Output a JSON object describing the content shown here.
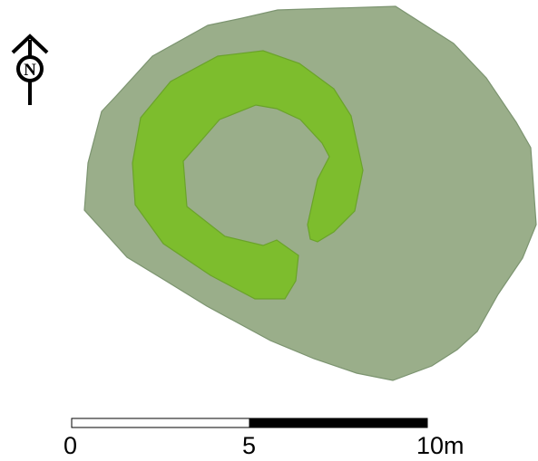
{
  "map": {
    "colors": {
      "mound_fill": "#9aae8a",
      "mound_stroke": "#7c9470",
      "bank_fill": "#7dbd2d",
      "bank_stroke": "#6aa32a"
    },
    "north_arrow": {
      "icon": "north-arrow-icon",
      "letter": "N"
    },
    "scale_bar": {
      "labels": [
        "0",
        "5",
        "10m"
      ],
      "segments": [
        {
          "from": 0,
          "to": 5,
          "fill": "#ffffff"
        },
        {
          "from": 5,
          "to": 10,
          "fill": "#000000"
        }
      ]
    }
  }
}
